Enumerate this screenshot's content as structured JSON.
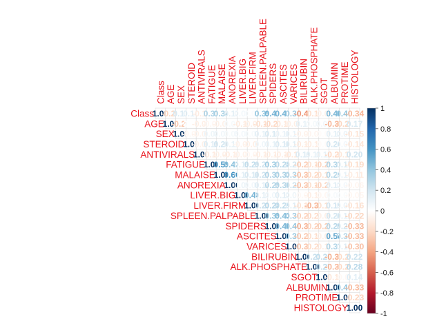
{
  "chart_data": {
    "type": "heatmap",
    "title": "",
    "variables": [
      "Class",
      "AGE",
      "SEX",
      "STEROID",
      "ANTIVIRALS",
      "FATIGUE",
      "MALAISE",
      "ANOREXIA",
      "LIVER.BIG",
      "LIVER.FIRM",
      "SPLEEN.PALPABLE",
      "SPIDERS",
      "ASCITES",
      "VARICES",
      "BILIRUBIN",
      "ALK.PHOSPHATE",
      "SGOT",
      "ALBUMIN",
      "PROTIME",
      "HISTOLOGY"
    ],
    "matrix": [
      [
        1.0,
        -0.22,
        0.17,
        0.14,
        -0.11,
        0.31,
        0.34,
        0.13,
        0.06,
        0.02,
        0.39,
        0.47,
        0.47,
        0.36,
        -0.45,
        -0.18,
        -0.07,
        0.46,
        0.4,
        -0.34
      ],
      [
        -0.22,
        1.0,
        -0.28,
        0.0,
        -0.09,
        -0.05,
        -0.08,
        0.04,
        -0.11,
        -0.09,
        -0.17,
        -0.21,
        -0.14,
        -0.09,
        0.11,
        0.05,
        0.06,
        -0.34,
        -0.22,
        0.17
      ],
      [
        0.17,
        -0.28,
        1.0,
        -0.05,
        -0.07,
        0.08,
        0.07,
        0.05,
        0.06,
        0.04,
        0.12,
        0.17,
        0.1,
        0.1,
        -0.08,
        -0.06,
        -0.02,
        0.12,
        0.09,
        -0.15
      ],
      [
        0.14,
        0.0,
        -0.05,
        1.0,
        -0.08,
        0.15,
        0.2,
        0.11,
        -0.07,
        -0.09,
        0.07,
        0.11,
        0.16,
        0.13,
        -0.12,
        -0.11,
        -0.02,
        0.2,
        0.06,
        -0.14
      ],
      [
        -0.11,
        -0.09,
        -0.07,
        -0.08,
        1.0,
        -0.12,
        -0.08,
        -0.11,
        -0.08,
        -0.05,
        -0.1,
        -0.1,
        -0.11,
        -0.14,
        0.15,
        0.11,
        0.11,
        -0.21,
        -0.14,
        0.2
      ],
      [
        0.31,
        -0.05,
        0.08,
        0.15,
        -0.12,
        1.0,
        0.59,
        0.42,
        0.15,
        0.25,
        0.21,
        0.37,
        0.28,
        0.2,
        -0.27,
        -0.17,
        -0.23,
        0.31,
        0.17,
        -0.19
      ],
      [
        0.34,
        -0.08,
        0.07,
        0.2,
        -0.08,
        0.59,
        1.0,
        0.6,
        0.12,
        0.16,
        0.21,
        0.31,
        0.32,
        0.3,
        -0.3,
        -0.2,
        -0.18,
        0.29,
        0.1,
        -0.11
      ],
      [
        0.13,
        0.04,
        0.05,
        0.11,
        -0.11,
        0.42,
        0.6,
        1.0,
        0.09,
        0.06,
        0.14,
        0.29,
        0.3,
        0.22,
        -0.3,
        -0.19,
        -0.23,
        0.13,
        0.06,
        -0.06
      ],
      [
        0.06,
        -0.11,
        0.06,
        -0.07,
        -0.08,
        0.15,
        0.12,
        0.09,
        1.0,
        0.48,
        0.13,
        0.07,
        0.13,
        0.08,
        -0.04,
        -0.1,
        -0.05,
        0.04,
        0.03,
        -0.05
      ],
      [
        0.02,
        -0.09,
        0.04,
        -0.09,
        -0.05,
        0.25,
        0.16,
        0.06,
        0.48,
        1.0,
        0.23,
        0.28,
        0.25,
        0.14,
        -0.17,
        -0.35,
        -0.18,
        0.19,
        0.09,
        -0.16
      ],
      [
        0.39,
        -0.17,
        0.12,
        0.07,
        -0.1,
        0.21,
        0.21,
        0.14,
        0.13,
        0.23,
        1.0,
        0.39,
        0.43,
        0.36,
        -0.25,
        -0.21,
        -0.09,
        0.2,
        0.12,
        -0.22
      ],
      [
        0.47,
        -0.21,
        0.17,
        0.11,
        -0.1,
        0.37,
        0.31,
        0.29,
        0.07,
        0.28,
        0.39,
        1.0,
        0.46,
        0.4,
        -0.36,
        -0.23,
        -0.25,
        0.29,
        0.2,
        -0.33
      ],
      [
        0.47,
        -0.14,
        0.1,
        0.16,
        -0.11,
        0.28,
        0.32,
        0.3,
        0.13,
        0.25,
        0.43,
        0.46,
        1.0,
        0.39,
        -0.29,
        -0.19,
        -0.09,
        0.54,
        0.3,
        -0.33
      ],
      [
        0.36,
        -0.09,
        0.1,
        0.13,
        -0.14,
        0.2,
        0.3,
        0.22,
        0.08,
        0.14,
        0.36,
        0.4,
        0.39,
        1.0,
        -0.3,
        -0.2,
        -0.12,
        0.31,
        0.14,
        -0.3
      ],
      [
        -0.45,
        0.11,
        -0.08,
        -0.12,
        0.15,
        -0.27,
        -0.3,
        -0.3,
        -0.04,
        -0.17,
        -0.25,
        -0.36,
        -0.29,
        -0.3,
        1.0,
        0.23,
        0.25,
        -0.37,
        -0.2,
        0.22
      ],
      [
        -0.18,
        0.05,
        -0.06,
        -0.11,
        0.11,
        -0.17,
        -0.2,
        -0.19,
        -0.1,
        -0.35,
        -0.21,
        -0.23,
        -0.19,
        -0.2,
        0.23,
        1.0,
        0.27,
        -0.34,
        -0.21,
        0.28
      ],
      [
        -0.07,
        0.06,
        -0.02,
        -0.02,
        0.11,
        -0.23,
        -0.18,
        -0.23,
        -0.05,
        -0.18,
        -0.09,
        -0.25,
        -0.09,
        -0.12,
        0.25,
        0.27,
        1.0,
        -0.14,
        -0.04,
        0.14
      ],
      [
        0.46,
        -0.34,
        0.12,
        0.2,
        -0.21,
        0.31,
        0.29,
        0.13,
        0.04,
        0.19,
        0.2,
        0.29,
        0.54,
        0.31,
        -0.37,
        -0.34,
        -0.14,
        1.0,
        0.4,
        -0.33
      ],
      [
        0.4,
        -0.22,
        0.09,
        0.06,
        -0.14,
        0.17,
        0.1,
        0.06,
        0.03,
        0.09,
        0.12,
        0.2,
        0.3,
        0.14,
        -0.2,
        -0.21,
        -0.04,
        0.4,
        1.0,
        -0.23
      ],
      [
        -0.34,
        0.17,
        -0.15,
        -0.14,
        0.2,
        -0.19,
        -0.11,
        -0.06,
        -0.05,
        -0.16,
        -0.22,
        -0.33,
        -0.33,
        -0.3,
        0.22,
        0.28,
        0.14,
        -0.33,
        -0.23,
        1.0
      ]
    ],
    "triangle": "upper",
    "colorbar": {
      "min": -1,
      "max": 1,
      "ticks": [
        "1",
        "0.8",
        "0.6",
        "0.4",
        "0.2",
        "0",
        "-0.2",
        "-0.4",
        "-0.6",
        "-0.8",
        "-1"
      ]
    },
    "colors": {
      "negative": "#67001f",
      "neutral": "#ffffff",
      "positive": "#053061",
      "label": "#e8111a"
    }
  }
}
